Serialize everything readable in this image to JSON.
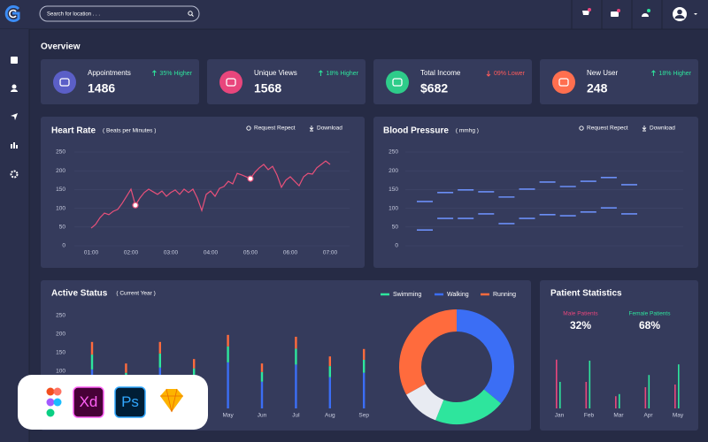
{
  "header": {
    "search_placeholder": "Search for location . . ."
  },
  "overview": {
    "title": "Overview",
    "cards": [
      {
        "label": "Appointments",
        "value": 1486,
        "change": "35% Higher",
        "trend": "up",
        "color": "#5b5fc7"
      },
      {
        "label": "Unique Views",
        "value": 1568,
        "change": "18% Higher",
        "trend": "up",
        "color": "#e8467c"
      },
      {
        "label": "Total Income",
        "value": "$682",
        "change": "09% Lower",
        "trend": "down",
        "color": "#2ecc8a"
      },
      {
        "label": "New User",
        "value": 248,
        "change": "18% Higher",
        "trend": "up",
        "color": "#ff6f4f"
      }
    ]
  },
  "heart_rate": {
    "type": "line",
    "title": "Heart Rate",
    "subtitle": "( Beats per Minutes )",
    "actions": [
      "Request Repect",
      "Download"
    ],
    "x": [
      "01:00",
      null,
      null,
      null,
      null,
      null,
      null,
      null,
      null,
      "02:00",
      null,
      null,
      null,
      null,
      null,
      null,
      null,
      null,
      "03:00",
      null,
      null,
      null,
      null,
      null,
      null,
      null,
      null,
      "04:00",
      null,
      null,
      null,
      null,
      null,
      null,
      null,
      null,
      "05:00",
      null,
      null,
      null,
      null,
      null,
      null,
      null,
      null,
      "06:00",
      null,
      null,
      null,
      null,
      null,
      null,
      null,
      null,
      "07:00"
    ],
    "values": [
      47,
      57,
      75,
      87,
      83,
      92,
      97,
      113,
      132,
      151,
      108,
      127,
      142,
      151,
      144,
      137,
      146,
      132,
      142,
      149,
      137,
      151,
      142,
      151,
      127,
      94,
      137,
      146,
      132,
      153,
      158,
      172,
      165,
      193,
      189,
      184,
      179,
      196,
      208,
      217,
      203,
      212,
      189,
      156,
      175,
      184,
      172,
      160,
      184,
      193,
      191,
      208,
      217,
      226,
      217
    ],
    "color": "#e8507a",
    "highlight": [
      10,
      36
    ],
    "ylim": [
      0,
      250
    ],
    "yticks": [
      0,
      50,
      100,
      150,
      200,
      250
    ],
    "grid": true
  },
  "blood_pressure": {
    "type": "dash",
    "title": "Blood Pressure",
    "subtitle": "( mmhg )",
    "actions": [
      "Request Repect",
      "Download"
    ],
    "categories": [
      null,
      null,
      null,
      null,
      null,
      null,
      null,
      null,
      null,
      null,
      null
    ],
    "series": [
      {
        "color": "#6b8ef5",
        "values": [
          118,
          142,
          149,
          144,
          130,
          151,
          170,
          158,
          172,
          182,
          163
        ]
      },
      {
        "color": "#6b8ef5",
        "values": [
          42,
          73,
          73,
          85,
          59,
          73,
          83,
          80,
          90,
          101,
          85
        ]
      }
    ],
    "ylim": [
      0,
      250
    ],
    "yticks": [
      0,
      50,
      100,
      150,
      200,
      250
    ],
    "grid": true
  },
  "active_status": {
    "type": "stacked_bar",
    "title": "Active Status",
    "subtitle": "( Current Year )",
    "categories": [
      null,
      null,
      null,
      null,
      "May",
      "Jun",
      "Jul",
      "Aug",
      "Sep"
    ],
    "series": [
      {
        "name": "Swimming",
        "color": "#2ee59d",
        "values": [
          40,
          26,
          38,
          28,
          43,
          26,
          43,
          30,
          35
        ]
      },
      {
        "name": "Walking",
        "color": "#3b6ef5",
        "values": [
          105,
          70,
          110,
          80,
          124,
          72,
          118,
          84,
          96
        ]
      },
      {
        "name": "Running",
        "color": "#ff6b3d",
        "values": [
          34,
          25,
          31,
          25,
          31,
          23,
          32,
          26,
          29
        ]
      }
    ],
    "ylim": [
      0,
      250
    ],
    "yticks": [
      0,
      50,
      100,
      150,
      200,
      250
    ]
  },
  "activity_share": {
    "type": "donut",
    "values": [
      36,
      20,
      11,
      33
    ],
    "colors": [
      "#3b6ef5",
      "#2ee59d",
      "#e8ebf2",
      "#ff6b3d"
    ]
  },
  "patient_statistics": {
    "type": "bar",
    "title": "Patient Statistics",
    "groups": [
      {
        "label": "Male Patients",
        "value": "32%",
        "color": "#e8467c"
      },
      {
        "label": "Female Patients",
        "value": "68%",
        "color": "#2ee59d"
      }
    ],
    "categories": [
      "Jan",
      "Feb",
      "Mar",
      "Apr",
      "May"
    ],
    "series": [
      {
        "color": "#e8467c",
        "values": [
          92,
          50,
          23,
          40,
          45
        ]
      },
      {
        "color": "#2ee59d",
        "values": [
          50,
          90,
          27,
          63,
          83
        ]
      }
    ],
    "ylim": [
      0,
      100
    ]
  },
  "tool_badges": [
    "Xd",
    "Ps"
  ]
}
